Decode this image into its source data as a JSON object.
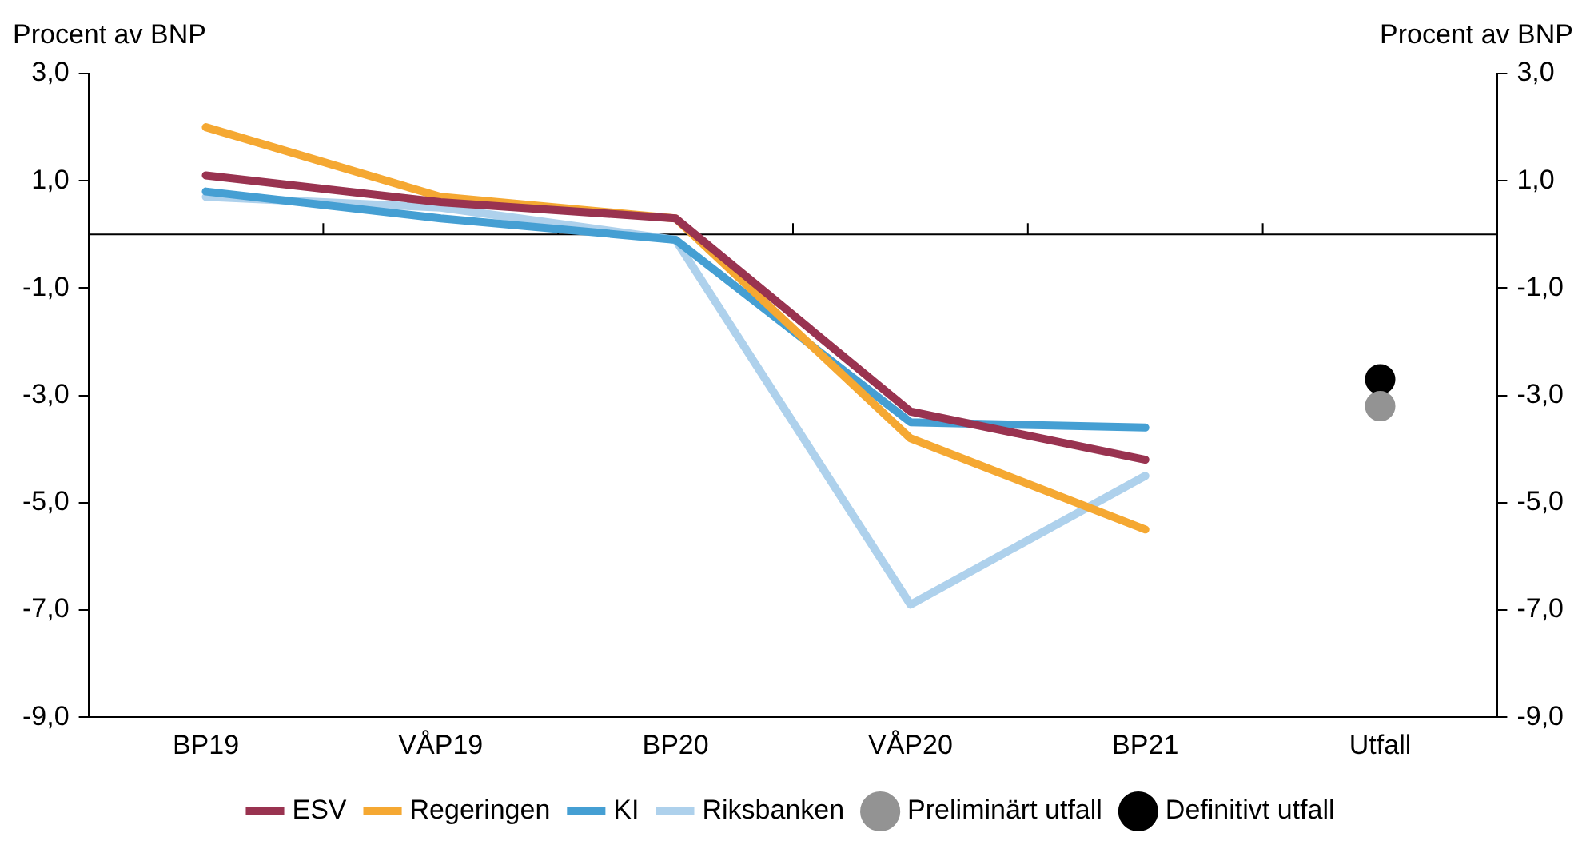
{
  "chart_data": {
    "type": "line",
    "ylabel": "Procent av BNP",
    "y2label": "Procent av BNP",
    "categories": [
      "BP19",
      "VÅP19",
      "BP20",
      "VÅP20",
      "BP21",
      "Utfall"
    ],
    "series": [
      {
        "name": "ESV",
        "color": "#993350",
        "values": [
          1.1,
          0.6,
          0.3,
          -3.3,
          -4.2,
          null
        ]
      },
      {
        "name": "Regeringen",
        "color": "#f5a832",
        "values": [
          2.0,
          0.7,
          0.3,
          -3.8,
          -5.5,
          null
        ]
      },
      {
        "name": "KI",
        "color": "#459fd3",
        "values": [
          0.8,
          0.3,
          -0.1,
          -3.5,
          -3.6,
          null
        ]
      },
      {
        "name": "Riksbanken",
        "color": "#aed1ec",
        "values": [
          0.7,
          0.5,
          -0.1,
          -6.9,
          -4.5,
          null
        ]
      },
      {
        "name": "Preliminärt utfall",
        "type": "scatter",
        "marker": "circle",
        "color": "#939393",
        "x": [
          "Utfall"
        ],
        "values": [
          -3.2
        ]
      },
      {
        "name": "Definitivt utfall",
        "type": "scatter",
        "marker": "circle",
        "color": "#000000",
        "x": [
          "Utfall"
        ],
        "values": [
          -2.7
        ]
      }
    ],
    "ylim": [
      -9,
      3
    ],
    "yticks": [
      {
        "value": -9,
        "label": "-9,0"
      },
      {
        "value": -7,
        "label": "-7,0"
      },
      {
        "value": -5,
        "label": "-5,0"
      },
      {
        "value": -3,
        "label": "-3,0"
      },
      {
        "value": -1,
        "label": "-1,0"
      },
      {
        "value": 1,
        "label": "1,0"
      },
      {
        "value": 3,
        "label": "3,0"
      }
    ],
    "y2lim": [
      -9,
      3
    ],
    "y2ticks": [
      {
        "value": -9,
        "label": "-9,0"
      },
      {
        "value": -7,
        "label": "-7,0"
      },
      {
        "value": -5,
        "label": "-5,0"
      },
      {
        "value": -3,
        "label": "-3,0"
      },
      {
        "value": -1,
        "label": "-1,0"
      },
      {
        "value": 1,
        "label": "1,0"
      },
      {
        "value": 3,
        "label": "3,0"
      }
    ],
    "ref_lines": [
      {
        "axis": "y",
        "value": 0,
        "color": "#000000"
      }
    ],
    "grid": false,
    "legend": "bottom",
    "marker": "none",
    "line_style": "solid"
  }
}
